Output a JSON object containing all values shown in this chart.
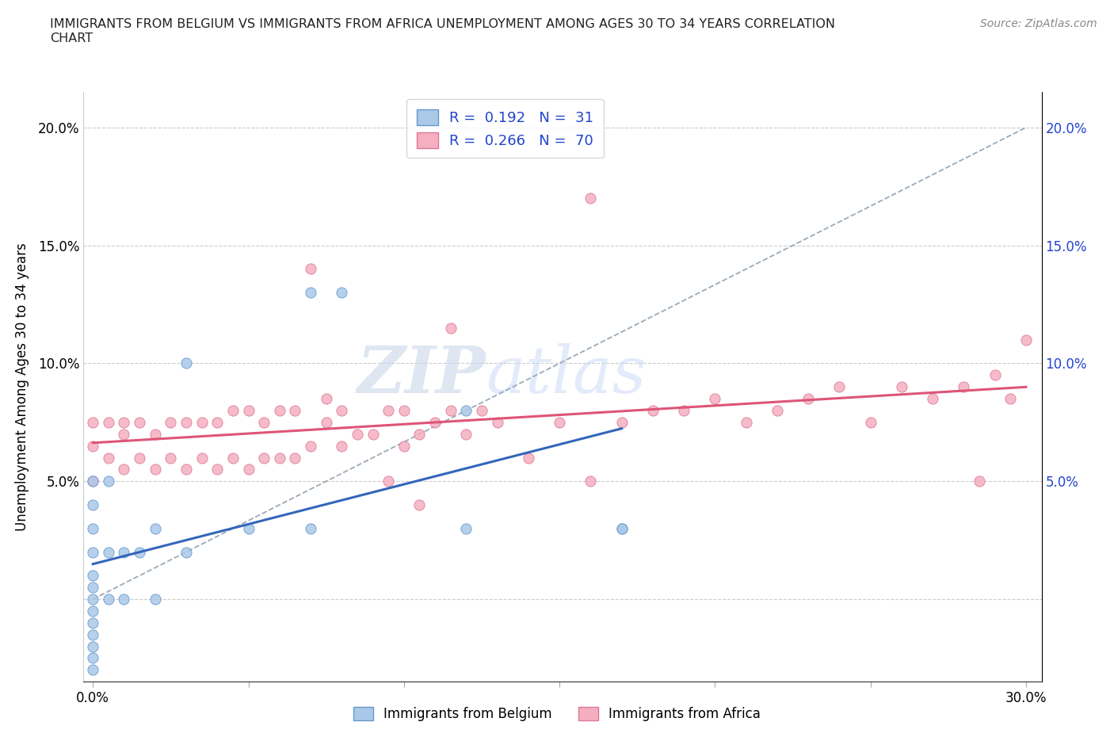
{
  "title": "IMMIGRANTS FROM BELGIUM VS IMMIGRANTS FROM AFRICA UNEMPLOYMENT AMONG AGES 30 TO 34 YEARS CORRELATION\nCHART",
  "source_text": "Source: ZipAtlas.com",
  "ylabel": "Unemployment Among Ages 30 to 34 years",
  "xlim": [
    -0.003,
    0.305
  ],
  "ylim": [
    -0.035,
    0.215
  ],
  "xtick_vals": [
    0.0,
    0.05,
    0.1,
    0.15,
    0.2,
    0.25,
    0.3
  ],
  "ytick_vals": [
    0.0,
    0.05,
    0.1,
    0.15,
    0.2
  ],
  "belgium_color": "#aac8e8",
  "africa_color": "#f5afc0",
  "belgium_edge": "#6699cc",
  "africa_edge": "#dd7799",
  "trendline_belgium_color": "#3366bb",
  "trendline_africa_color": "#dd5577",
  "trendline_dashed_color": "#99aabb",
  "legend_text_color": "#2244cc",
  "R_belgium": 0.192,
  "N_belgium": 31,
  "R_africa": 0.266,
  "N_africa": 70,
  "watermark_zip": "ZIP",
  "watermark_atlas": "atlas",
  "belgium_x": [
    0.0,
    0.0,
    0.0,
    0.0,
    0.0,
    0.0,
    0.0,
    0.0,
    0.0,
    0.0,
    0.0,
    0.0,
    0.0,
    0.005,
    0.005,
    0.005,
    0.01,
    0.01,
    0.015,
    0.02,
    0.02,
    0.03,
    0.05,
    0.07,
    0.07,
    0.08,
    0.12,
    0.12,
    0.17,
    0.17,
    0.03
  ],
  "belgium_y": [
    0.0,
    -0.005,
    -0.01,
    -0.015,
    -0.02,
    -0.025,
    -0.03,
    0.005,
    0.01,
    0.02,
    0.03,
    0.04,
    0.05,
    0.0,
    0.02,
    0.05,
    0.0,
    0.02,
    0.02,
    0.0,
    0.03,
    0.02,
    0.03,
    0.03,
    0.13,
    0.13,
    0.03,
    0.08,
    0.03,
    0.03,
    0.1
  ],
  "africa_x": [
    0.0,
    0.0,
    0.0,
    0.005,
    0.005,
    0.01,
    0.01,
    0.01,
    0.015,
    0.015,
    0.02,
    0.02,
    0.025,
    0.025,
    0.03,
    0.03,
    0.035,
    0.035,
    0.04,
    0.04,
    0.045,
    0.045,
    0.05,
    0.05,
    0.055,
    0.055,
    0.06,
    0.06,
    0.065,
    0.065,
    0.07,
    0.07,
    0.075,
    0.08,
    0.08,
    0.09,
    0.095,
    0.1,
    0.1,
    0.105,
    0.11,
    0.115,
    0.12,
    0.125,
    0.13,
    0.14,
    0.15,
    0.16,
    0.17,
    0.18,
    0.19,
    0.2,
    0.21,
    0.22,
    0.23,
    0.24,
    0.25,
    0.26,
    0.27,
    0.28,
    0.285,
    0.29,
    0.295,
    0.3,
    0.075,
    0.085,
    0.095,
    0.105,
    0.16,
    0.115
  ],
  "africa_y": [
    0.05,
    0.065,
    0.075,
    0.06,
    0.075,
    0.055,
    0.07,
    0.075,
    0.06,
    0.075,
    0.055,
    0.07,
    0.06,
    0.075,
    0.055,
    0.075,
    0.06,
    0.075,
    0.055,
    0.075,
    0.06,
    0.08,
    0.055,
    0.08,
    0.06,
    0.075,
    0.06,
    0.08,
    0.06,
    0.08,
    0.065,
    0.14,
    0.075,
    0.065,
    0.08,
    0.07,
    0.08,
    0.065,
    0.08,
    0.07,
    0.075,
    0.08,
    0.07,
    0.08,
    0.075,
    0.06,
    0.075,
    0.17,
    0.075,
    0.08,
    0.08,
    0.085,
    0.075,
    0.08,
    0.085,
    0.09,
    0.075,
    0.09,
    0.085,
    0.09,
    0.05,
    0.095,
    0.085,
    0.11,
    0.085,
    0.07,
    0.05,
    0.04,
    0.05,
    0.115
  ]
}
